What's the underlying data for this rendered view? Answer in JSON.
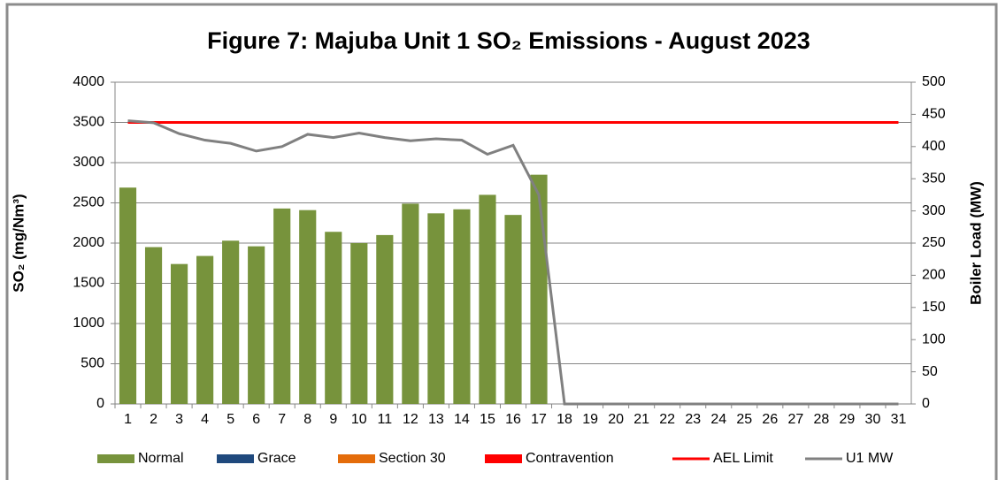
{
  "chart_data": {
    "type": "bar",
    "title": "Figure 7: Majuba Unit 1 SO₂ Emissions -  August 2023",
    "y_label": "SO₂ (mg/Nm³)",
    "y2_label": "Boiler Load (MW)",
    "categories": [
      "1",
      "2",
      "3",
      "4",
      "5",
      "6",
      "7",
      "8",
      "9",
      "10",
      "11",
      "12",
      "13",
      "14",
      "15",
      "16",
      "17",
      "18",
      "19",
      "20",
      "21",
      "22",
      "23",
      "24",
      "25",
      "26",
      "27",
      "28",
      "29",
      "30",
      "31"
    ],
    "series": [
      {
        "name": "Normal",
        "type": "bar",
        "color": "#77933c",
        "values": [
          2690,
          1950,
          1740,
          1840,
          2030,
          1960,
          2430,
          2410,
          2140,
          2000,
          2100,
          2490,
          2370,
          2420,
          2600,
          2350,
          2850,
          null,
          null,
          null,
          null,
          null,
          null,
          null,
          null,
          null,
          null,
          null,
          null,
          null,
          null
        ]
      },
      {
        "name": "Grace",
        "type": "bar",
        "color": "#1f497d",
        "values": [
          null,
          null,
          null,
          null,
          null,
          null,
          null,
          null,
          null,
          null,
          null,
          null,
          null,
          null,
          null,
          null,
          null,
          null,
          null,
          null,
          null,
          null,
          null,
          null,
          null,
          null,
          null,
          null,
          null,
          null,
          null
        ]
      },
      {
        "name": "Section 30",
        "type": "bar",
        "color": "#e46c0a",
        "values": [
          null,
          null,
          null,
          null,
          null,
          null,
          null,
          null,
          null,
          null,
          null,
          null,
          null,
          null,
          null,
          null,
          null,
          null,
          null,
          null,
          null,
          null,
          null,
          null,
          null,
          null,
          null,
          null,
          null,
          null,
          null
        ]
      },
      {
        "name": "Contravention",
        "type": "bar",
        "color": "#ff0000",
        "values": [
          null,
          null,
          null,
          null,
          null,
          null,
          null,
          null,
          null,
          null,
          null,
          null,
          null,
          null,
          null,
          null,
          null,
          null,
          null,
          null,
          null,
          null,
          null,
          null,
          null,
          null,
          null,
          null,
          null,
          null,
          null
        ]
      },
      {
        "name": "AEL Limit",
        "type": "line",
        "color": "#ff0000",
        "values": [
          3500,
          3500,
          3500,
          3500,
          3500,
          3500,
          3500,
          3500,
          3500,
          3500,
          3500,
          3500,
          3500,
          3500,
          3500,
          3500,
          3500,
          3500,
          3500,
          3500,
          3500,
          3500,
          3500,
          3500,
          3500,
          3500,
          3500,
          3500,
          3500,
          3500,
          3500
        ]
      },
      {
        "name": "U1 MW",
        "type": "line",
        "axis": "y2",
        "color": "#808080",
        "values": [
          440,
          437,
          420,
          410,
          405,
          393,
          400,
          419,
          414,
          421,
          414,
          409,
          412,
          410,
          388,
          402,
          325,
          0,
          0,
          0,
          0,
          0,
          0,
          0,
          0,
          0,
          0,
          0,
          0,
          0,
          0
        ]
      }
    ],
    "ylim": [
      0,
      4000
    ],
    "yticks": [
      0,
      500,
      1000,
      1500,
      2000,
      2500,
      3000,
      3500,
      4000
    ],
    "y2lim": [
      0,
      500
    ],
    "y2ticks": [
      0,
      50,
      100,
      150,
      200,
      250,
      300,
      350,
      400,
      450,
      500
    ],
    "grid": true,
    "legend": "bottom"
  }
}
